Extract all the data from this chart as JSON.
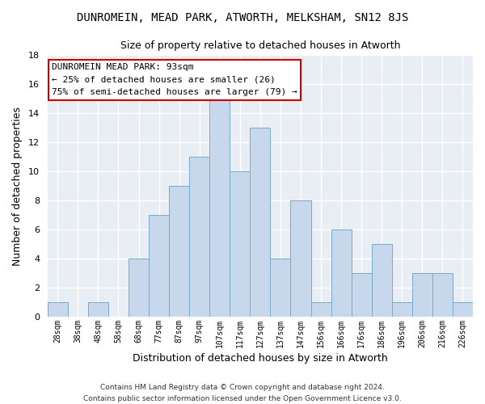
{
  "title": "DUNROMEIN, MEAD PARK, ATWORTH, MELKSHAM, SN12 8JS",
  "subtitle": "Size of property relative to detached houses in Atworth",
  "xlabel": "Distribution of detached houses by size in Atworth",
  "ylabel": "Number of detached properties",
  "bar_color": "#c8d8ec",
  "bar_edge_color": "#7aaac8",
  "categories": [
    "28sqm",
    "38sqm",
    "48sqm",
    "58sqm",
    "68sqm",
    "77sqm",
    "87sqm",
    "97sqm",
    "107sqm",
    "117sqm",
    "127sqm",
    "137sqm",
    "147sqm",
    "156sqm",
    "166sqm",
    "176sqm",
    "186sqm",
    "196sqm",
    "206sqm",
    "216sqm",
    "226sqm"
  ],
  "values": [
    1,
    0,
    1,
    0,
    4,
    7,
    9,
    11,
    15,
    10,
    13,
    4,
    8,
    1,
    6,
    3,
    5,
    1,
    3,
    3,
    1
  ],
  "ylim": [
    0,
    18
  ],
  "yticks": [
    0,
    2,
    4,
    6,
    8,
    10,
    12,
    14,
    16,
    18
  ],
  "annotation_title": "DUNROMEIN MEAD PARK: 93sqm",
  "annotation_line1": "← 25% of detached houses are smaller (26)",
  "annotation_line2": "75% of semi-detached houses are larger (79) →",
  "annotation_box_color": "#ffffff",
  "annotation_box_edge": "#cc0000",
  "footer1": "Contains HM Land Registry data © Crown copyright and database right 2024.",
  "footer2": "Contains public sector information licensed under the Open Government Licence v3.0.",
  "background_color": "#ffffff",
  "plot_bg_color": "#e8eef4"
}
